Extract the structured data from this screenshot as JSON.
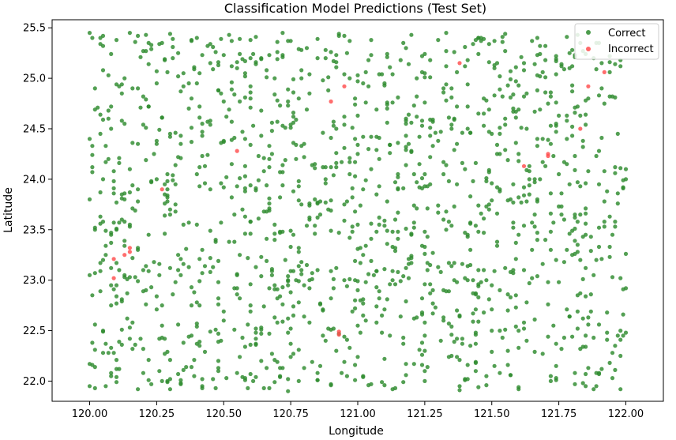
{
  "chart_data": {
    "type": "scatter",
    "title": "Classification Model Predictions (Test Set)",
    "xlabel": "Longitude",
    "ylabel": "Latitude",
    "xlim": [
      119.86,
      122.14
    ],
    "ylim": [
      21.8,
      25.58
    ],
    "xticks": [
      "120.00",
      "120.25",
      "120.50",
      "120.75",
      "121.00",
      "121.25",
      "121.50",
      "121.75",
      "122.00"
    ],
    "yticks": [
      "22.0",
      "22.5",
      "23.0",
      "23.5",
      "24.0",
      "24.5",
      "25.0",
      "25.5"
    ],
    "grid": false,
    "legend": {
      "placement": "top-right",
      "entries": [
        "Correct",
        "Incorrect"
      ]
    },
    "colors": {
      "Correct": "#2e8b2e",
      "Incorrect": "#ff4d4d"
    },
    "series": [
      {
        "name": "Correct",
        "x_range": [
          120.0,
          122.0
        ],
        "y_range": [
          21.9,
          25.45
        ],
        "approx_count": 1450,
        "points": [
          [
            120.0,
            25.45
          ],
          [
            120.05,
            25.42
          ],
          [
            120.1,
            25.38
          ],
          [
            120.15,
            25.45
          ],
          [
            120.22,
            25.35
          ],
          [
            120.3,
            25.44
          ],
          [
            120.4,
            25.4
          ],
          [
            120.52,
            25.43
          ],
          [
            120.62,
            25.41
          ],
          [
            120.72,
            25.45
          ],
          [
            120.85,
            25.39
          ],
          [
            120.95,
            25.42
          ],
          [
            121.05,
            25.38
          ],
          [
            121.2,
            25.43
          ],
          [
            121.33,
            25.45
          ],
          [
            121.45,
            25.4
          ],
          [
            121.55,
            25.44
          ],
          [
            121.65,
            25.37
          ],
          [
            121.78,
            25.41
          ],
          [
            121.9,
            25.35
          ],
          [
            120.02,
            24.9
          ],
          [
            120.12,
            24.85
          ],
          [
            120.25,
            24.95
          ],
          [
            120.38,
            24.8
          ],
          [
            120.48,
            24.88
          ],
          [
            120.6,
            24.92
          ],
          [
            120.7,
            24.78
          ],
          [
            120.82,
            24.85
          ],
          [
            121.1,
            24.95
          ],
          [
            121.22,
            24.82
          ],
          [
            121.35,
            24.9
          ],
          [
            121.47,
            24.8
          ],
          [
            121.6,
            24.93
          ],
          [
            121.72,
            24.86
          ],
          [
            121.95,
            24.82
          ],
          [
            120.0,
            24.4
          ],
          [
            120.08,
            24.5
          ],
          [
            120.18,
            24.35
          ],
          [
            120.3,
            24.45
          ],
          [
            120.42,
            24.55
          ],
          [
            120.58,
            24.4
          ],
          [
            120.68,
            24.48
          ],
          [
            120.8,
            24.35
          ],
          [
            120.92,
            24.5
          ],
          [
            121.05,
            24.42
          ],
          [
            121.18,
            24.55
          ],
          [
            121.3,
            24.38
          ],
          [
            121.42,
            24.46
          ],
          [
            121.55,
            24.6
          ],
          [
            121.67,
            24.4
          ],
          [
            121.8,
            24.52
          ],
          [
            121.97,
            24.45
          ],
          [
            120.05,
            24.0
          ],
          [
            120.15,
            24.1
          ],
          [
            120.28,
            23.95
          ],
          [
            120.4,
            24.05
          ],
          [
            120.5,
            23.92
          ],
          [
            120.65,
            24.08
          ],
          [
            120.78,
            23.98
          ],
          [
            120.9,
            24.12
          ],
          [
            121.02,
            23.9
          ],
          [
            121.15,
            24.05
          ],
          [
            121.27,
            23.95
          ],
          [
            121.4,
            24.1
          ],
          [
            121.52,
            23.92
          ],
          [
            121.68,
            24.0
          ],
          [
            121.78,
            24.15
          ],
          [
            121.9,
            23.95
          ],
          [
            122.0,
            24.1
          ],
          [
            120.02,
            23.5
          ],
          [
            120.12,
            23.6
          ],
          [
            120.22,
            23.45
          ],
          [
            120.35,
            23.55
          ],
          [
            120.47,
            23.4
          ],
          [
            120.6,
            23.58
          ],
          [
            120.72,
            23.48
          ],
          [
            120.85,
            23.62
          ],
          [
            120.97,
            23.42
          ],
          [
            121.08,
            23.55
          ],
          [
            121.2,
            23.45
          ],
          [
            121.32,
            23.6
          ],
          [
            121.45,
            23.48
          ],
          [
            121.58,
            23.52
          ],
          [
            121.7,
            23.4
          ],
          [
            121.82,
            23.58
          ],
          [
            121.95,
            23.45
          ],
          [
            120.0,
            23.05
          ],
          [
            120.1,
            22.95
          ],
          [
            120.2,
            23.1
          ],
          [
            120.32,
            22.98
          ],
          [
            120.45,
            23.08
          ],
          [
            120.55,
            22.92
          ],
          [
            120.68,
            23.05
          ],
          [
            120.8,
            22.95
          ],
          [
            120.92,
            23.12
          ],
          [
            121.03,
            22.98
          ],
          [
            121.15,
            23.08
          ],
          [
            121.28,
            22.9
          ],
          [
            121.4,
            23.02
          ],
          [
            121.5,
            22.95
          ],
          [
            121.62,
            23.1
          ],
          [
            121.75,
            22.98
          ],
          [
            121.88,
            23.05
          ],
          [
            122.0,
            22.92
          ],
          [
            120.05,
            22.5
          ],
          [
            120.15,
            22.42
          ],
          [
            120.27,
            22.55
          ],
          [
            120.38,
            22.45
          ],
          [
            120.5,
            22.6
          ],
          [
            120.62,
            22.48
          ],
          [
            120.75,
            22.52
          ],
          [
            120.88,
            22.4
          ],
          [
            121.0,
            22.55
          ],
          [
            121.12,
            22.45
          ],
          [
            121.25,
            22.58
          ],
          [
            121.37,
            22.42
          ],
          [
            121.5,
            22.5
          ],
          [
            121.63,
            22.4
          ],
          [
            121.73,
            22.55
          ],
          [
            121.85,
            22.45
          ],
          [
            121.98,
            22.5
          ],
          [
            120.0,
            21.95
          ],
          [
            120.08,
            22.05
          ],
          [
            120.18,
            21.92
          ],
          [
            120.3,
            22.02
          ],
          [
            120.42,
            21.95
          ],
          [
            120.55,
            22.08
          ],
          [
            120.67,
            21.93
          ],
          [
            120.78,
            22.0
          ],
          [
            120.9,
            21.96
          ],
          [
            121.02,
            22.05
          ],
          [
            121.13,
            21.92
          ],
          [
            121.25,
            22.0
          ],
          [
            121.38,
            21.95
          ],
          [
            121.48,
            22.05
          ],
          [
            121.6,
            21.92
          ],
          [
            121.72,
            22.0
          ],
          [
            121.85,
            21.95
          ],
          [
            121.98,
            21.92
          ]
        ]
      },
      {
        "name": "Incorrect",
        "points": [
          [
            121.38,
            25.15
          ],
          [
            121.92,
            25.06
          ],
          [
            120.95,
            24.92
          ],
          [
            121.86,
            24.92
          ],
          [
            120.9,
            24.77
          ],
          [
            121.83,
            24.5
          ],
          [
            120.55,
            24.28
          ],
          [
            121.71,
            24.25
          ],
          [
            121.71,
            24.23
          ],
          [
            121.62,
            24.13
          ],
          [
            120.27,
            23.9
          ],
          [
            120.15,
            23.32
          ],
          [
            120.15,
            23.28
          ],
          [
            120.13,
            23.25
          ],
          [
            120.09,
            23.21
          ],
          [
            120.09,
            23.02
          ],
          [
            120.93,
            22.49
          ],
          [
            120.93,
            22.46
          ]
        ]
      }
    ]
  }
}
